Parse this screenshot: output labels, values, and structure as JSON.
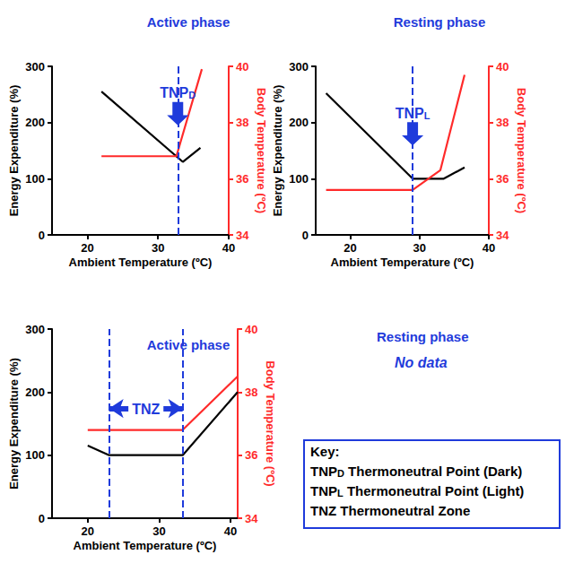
{
  "chart_data": [
    {
      "type": "line",
      "title": "Active phase",
      "x_label": "Ambient Temperature (ºC)",
      "y_label": "Energy Expenditure (%)",
      "y2_label": "Body Temperature (ºC)",
      "xlim": [
        15,
        40
      ],
      "xticks": [
        20,
        30,
        40
      ],
      "ylim": [
        0,
        300
      ],
      "yticks": [
        0,
        100,
        200,
        300
      ],
      "y2lim": [
        34,
        40
      ],
      "y2ticks": [
        34,
        36,
        38,
        40
      ],
      "grid": false,
      "marker": "none",
      "series": [
        {
          "color": "#000000",
          "x": [
            22,
            33.5,
            36
          ],
          "values": [
            255,
            130,
            155
          ]
        },
        {
          "color": "#ff2a2a",
          "axis": "y2",
          "x": [
            22,
            32.6,
            36.2
          ],
          "values": [
            36.8,
            36.8,
            39.9
          ]
        }
      ],
      "annotations": [
        {
          "text": "TNP",
          "subscript": "D",
          "x": 32.8
        }
      ]
    },
    {
      "type": "line",
      "title": "Resting phase",
      "x_label": "Ambient Temperature (ºC)",
      "y_label": "Energy Expenditure (%)",
      "y2_label": "Body Temperature (ºC)",
      "xlim": [
        15,
        40
      ],
      "xticks": [
        20,
        30,
        40
      ],
      "ylim": [
        0,
        300
      ],
      "yticks": [
        0,
        100,
        200,
        300
      ],
      "y2lim": [
        34,
        40
      ],
      "y2ticks": [
        34,
        36,
        38,
        40
      ],
      "grid": false,
      "marker": "none",
      "series": [
        {
          "color": "#000000",
          "x": [
            16.5,
            29,
            33.5,
            36.5
          ],
          "values": [
            252,
            100,
            100,
            120
          ]
        },
        {
          "color": "#ff2a2a",
          "axis": "y2",
          "x": [
            16.5,
            29,
            33,
            36.5
          ],
          "values": [
            35.6,
            35.6,
            36.3,
            39.7
          ]
        }
      ],
      "annotations": [
        {
          "text": "TNP",
          "subscript": "L",
          "x": 29
        }
      ]
    },
    {
      "type": "line",
      "title": "Active phase",
      "x_label": "Ambient Temperature (ºC)",
      "y_label": "Energy Expenditure (%)",
      "y2_label": "Body Temperature (ºC)",
      "xlim": [
        15,
        41
      ],
      "xticks": [
        20,
        30,
        40
      ],
      "ylim": [
        0,
        300
      ],
      "yticks": [
        0,
        100,
        200,
        300
      ],
      "y2lim": [
        34,
        40
      ],
      "y2ticks": [
        34,
        36,
        38,
        40
      ],
      "grid": false,
      "marker": "none",
      "series": [
        {
          "color": "#000000",
          "x": [
            20,
            23,
            33.3,
            41
          ],
          "values": [
            115,
            100,
            100,
            200
          ]
        },
        {
          "color": "#ff2a2a",
          "axis": "y2",
          "x": [
            20,
            33.3,
            41
          ],
          "values": [
            36.8,
            36.8,
            38.5
          ]
        }
      ],
      "annotations": [
        {
          "text": "TNZ",
          "x": [
            23,
            33.3
          ]
        }
      ]
    }
  ],
  "no_data_panel": {
    "title": "Resting phase",
    "text": "No data"
  },
  "key": {
    "title": "Key:",
    "entries": [
      {
        "symbol": "TNP",
        "subscript": "D",
        "text": "Thermoneutral Point (Dark)"
      },
      {
        "symbol": "TNP",
        "subscript": "L",
        "text": "Thermoneutral Point (Light)"
      },
      {
        "symbol": "TNZ",
        "text": "Thermoneutral Zone"
      }
    ]
  }
}
